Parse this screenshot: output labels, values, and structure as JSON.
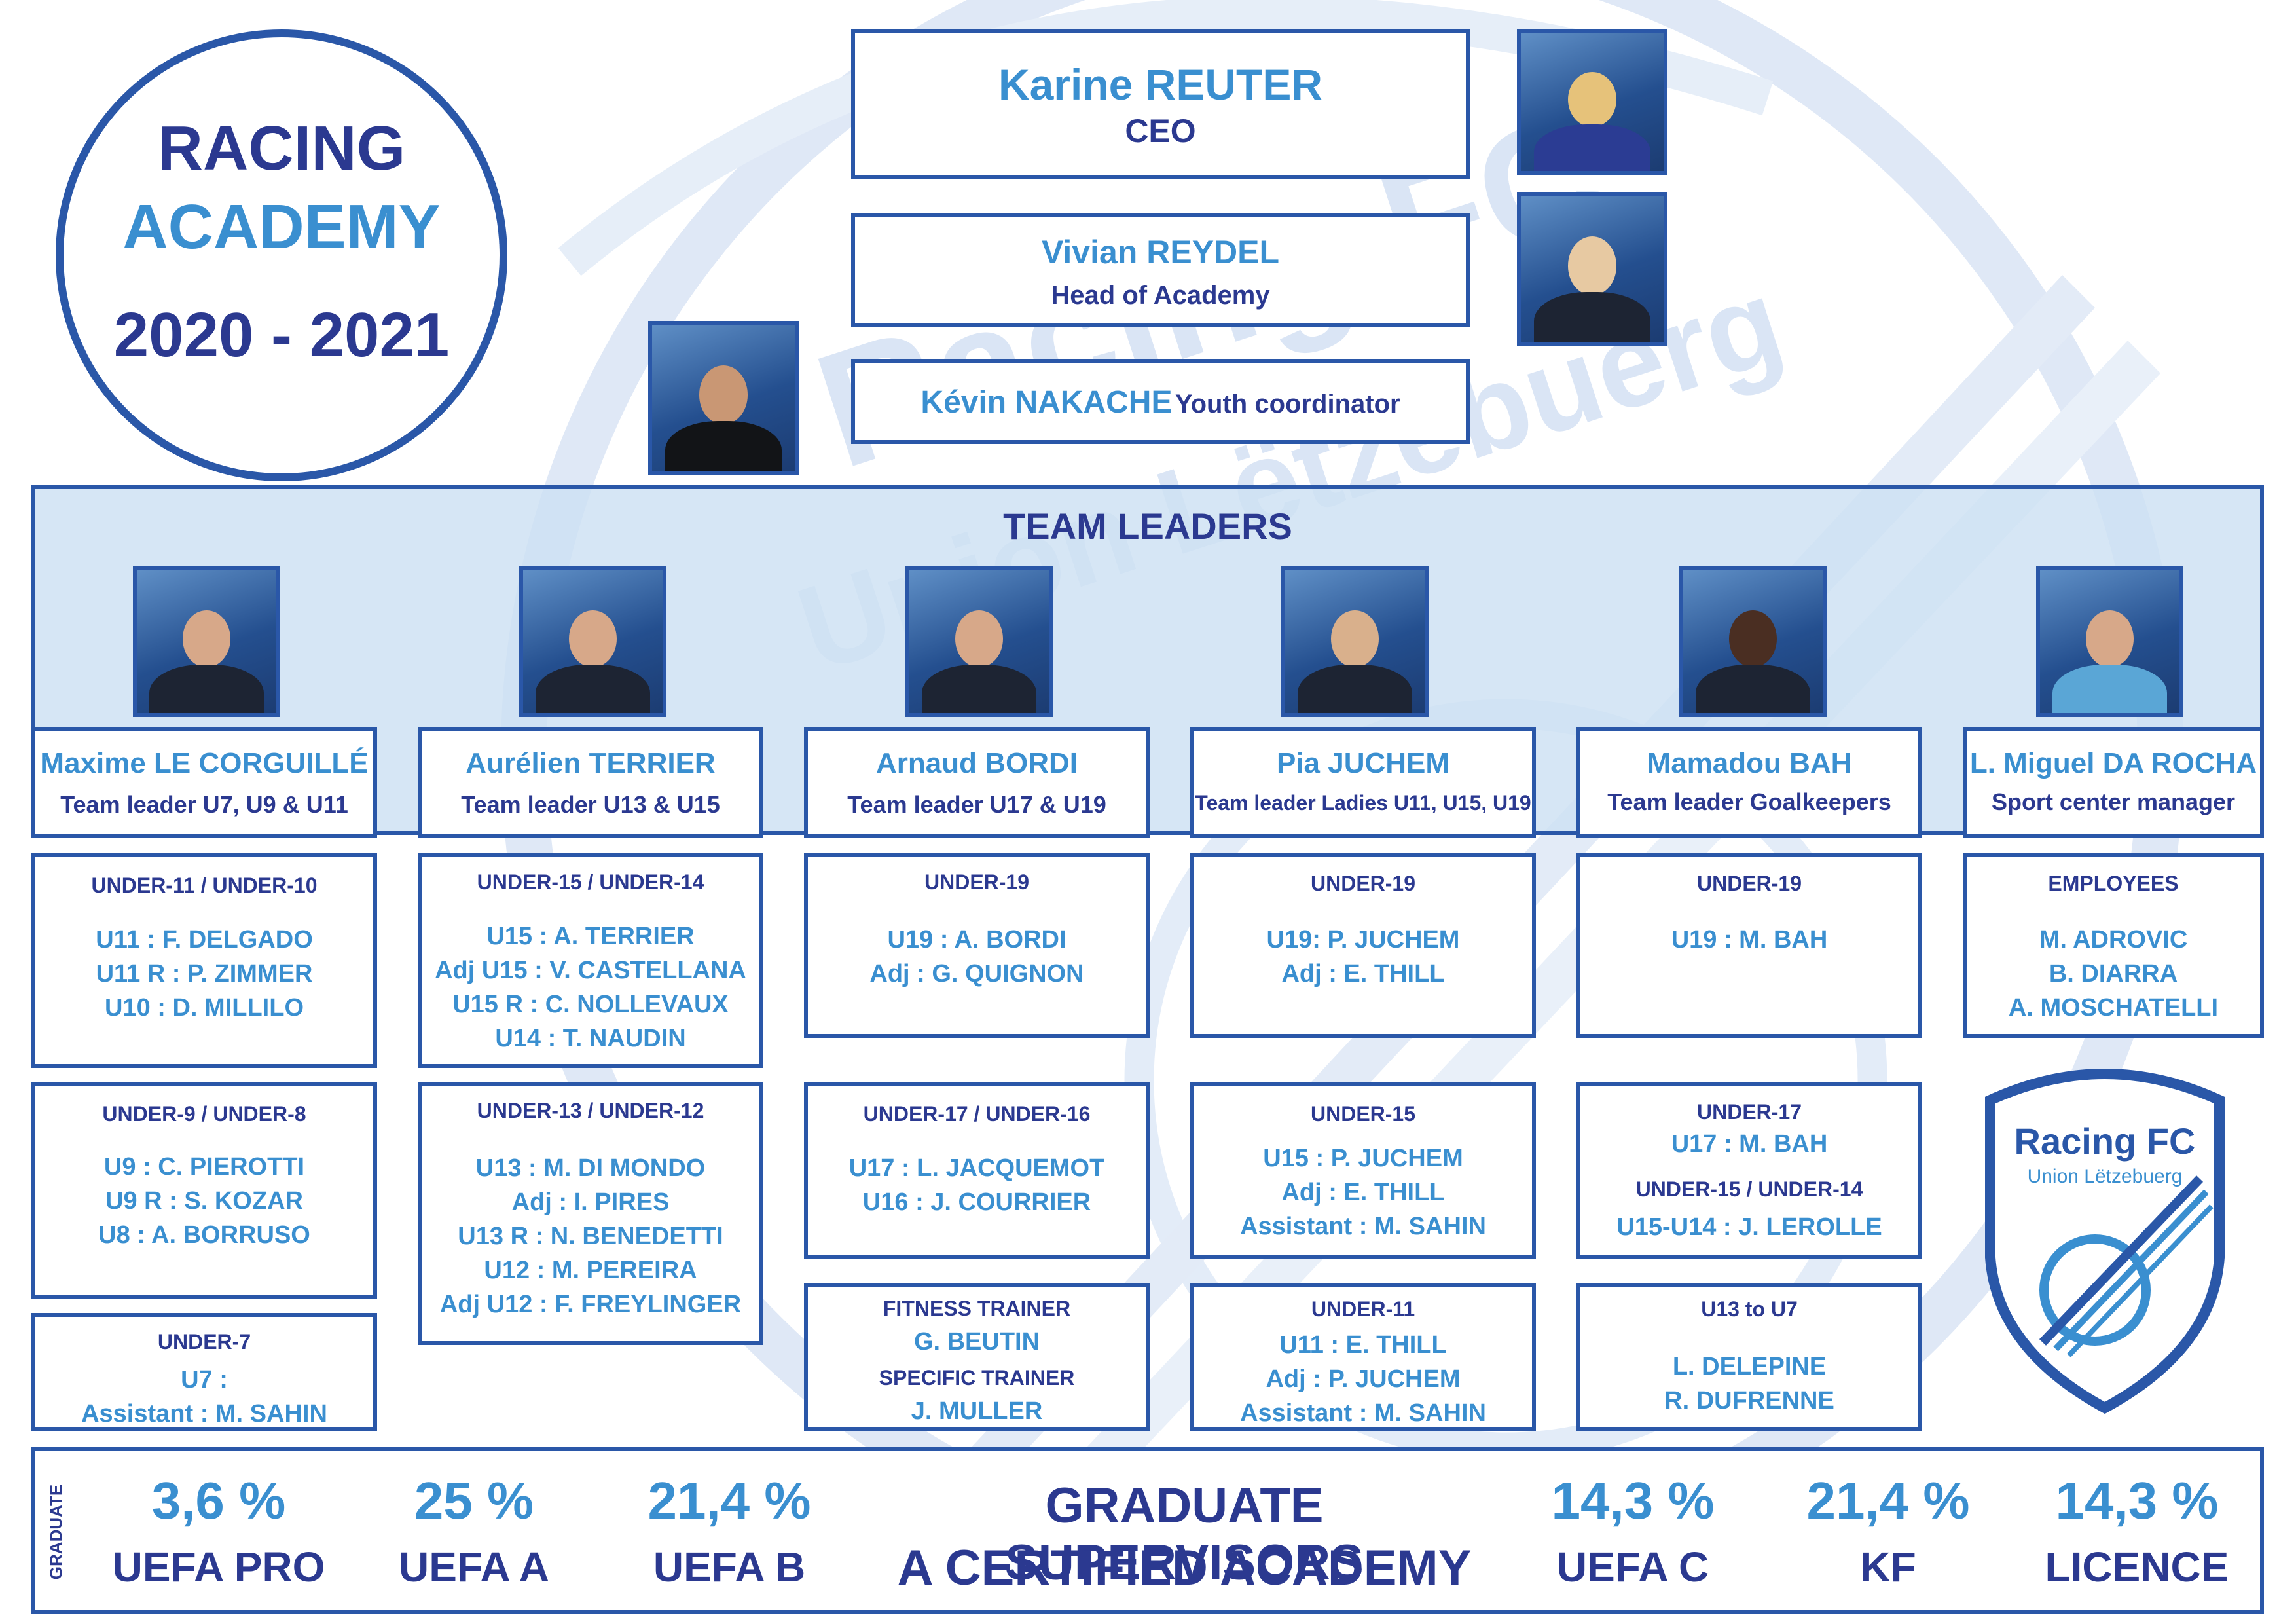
{
  "title": {
    "line1": "RACING",
    "line2": "ACADEMY",
    "season": "2020 - 2021"
  },
  "watermark": {
    "line1": "Racing FC",
    "line2": "Union Lëtzebuerg"
  },
  "management": {
    "ceo": {
      "name": "Karine REUTER",
      "role": "CEO"
    },
    "head": {
      "name": "Vivian REYDEL",
      "role": "Head of Academy"
    },
    "coordinator": {
      "name": "Kévin NAKACHE",
      "role": "Youth coordinator"
    }
  },
  "team_leaders_title": "TEAM LEADERS",
  "leaders": [
    {
      "name": "Maxime LE CORGUILLÉ",
      "role": "Team leader U7, U9 & U11"
    },
    {
      "name": "Aurélien TERRIER",
      "role": "Team leader U13 & U15"
    },
    {
      "name": "Arnaud BORDI",
      "role": "Team leader U17 & U19"
    },
    {
      "name": "Pia JUCHEM",
      "role": "Team leader Ladies U11, U15, U19"
    },
    {
      "name": "Mamadou BAH",
      "role": "Team leader Goalkeepers"
    },
    {
      "name": "L. Miguel DA ROCHA",
      "role": "Sport center manager"
    }
  ],
  "teams": {
    "c1a": {
      "title": "UNDER-11 / UNDER-10",
      "lines": [
        "U11 : F. DELGADO",
        "U11 R : P. ZIMMER",
        "U10 : D. MILLILO"
      ]
    },
    "c1b": {
      "title": "UNDER-9 / UNDER-8",
      "lines": [
        "U9 : C. PIEROTTI",
        "U9 R : S. KOZAR",
        "U8 : A. BORRUSO"
      ]
    },
    "c1c": {
      "title": "UNDER-7",
      "lines": [
        "U7 :",
        "Assistant : M. SAHIN"
      ]
    },
    "c2a": {
      "title": "UNDER-15 / UNDER-14",
      "lines": [
        "U15 : A. TERRIER",
        "Adj U15 : V. CASTELLANA",
        "U15 R : C. NOLLEVAUX",
        "U14 : T. NAUDIN"
      ]
    },
    "c2b": {
      "title": "UNDER-13 / UNDER-12",
      "lines": [
        "U13 : M. DI MONDO",
        "Adj : I. PIRES",
        "U13 R : N. BENEDETTI",
        "U12 : M. PEREIRA",
        "Adj U12 : F. FREYLINGER"
      ]
    },
    "c3a": {
      "title": "UNDER-19",
      "lines": [
        "U19 : A. BORDI",
        "Adj : G. QUIGNON"
      ]
    },
    "c3b": {
      "title": "UNDER-17 / UNDER-16",
      "lines": [
        "U17 : L. JACQUEMOT",
        "U16 : J. COURRIER"
      ]
    },
    "c3c": {
      "title1": "FITNESS TRAINER",
      "line1": "G. BEUTIN",
      "title2": "SPECIFIC TRAINER",
      "line2": "J. MULLER"
    },
    "c4a": {
      "title": "UNDER-19",
      "lines": [
        "U19: P. JUCHEM",
        "Adj : E. THILL"
      ]
    },
    "c4b": {
      "title": "UNDER-15",
      "lines": [
        "U15 : P. JUCHEM",
        "Adj : E. THILL",
        "Assistant : M. SAHIN"
      ]
    },
    "c4c": {
      "title": "UNDER-11",
      "lines": [
        "U11 : E. THILL",
        "Adj : P. JUCHEM",
        "Assistant : M. SAHIN"
      ]
    },
    "c5a": {
      "title": "UNDER-19",
      "lines": [
        "U19 : M. BAH"
      ]
    },
    "c5b": {
      "title1": "UNDER-17",
      "line1": "U17 : M. BAH",
      "title2": "UNDER-15 / UNDER-14",
      "line2": "U15-U14 : J. LEROLLE"
    },
    "c5c": {
      "title": "U13 to U7",
      "lines": [
        "L. DELEPINE",
        "R. DUFRENNE"
      ]
    },
    "c6a": {
      "title": "EMPLOYEES",
      "lines": [
        "M. ADROVIC",
        "B. DIARRA",
        "A. MOSCHATELLI"
      ]
    }
  },
  "logo": {
    "line1": "Racing FC",
    "line2": "Union Lëtzebuerg"
  },
  "graduate": {
    "label": "GRADUATE",
    "center1": "GRADUATE SUPERVISORS",
    "center2": "A CERTIFIED ACADEMY",
    "stats": [
      {
        "pct": "3,6 %",
        "label": "UEFA PRO"
      },
      {
        "pct": "25 %",
        "label": "UEFA A"
      },
      {
        "pct": "21,4 %",
        "label": "UEFA B"
      },
      {
        "pct": "14,3 %",
        "label": "UEFA C"
      },
      {
        "pct": "21,4 %",
        "label": "KF"
      },
      {
        "pct": "14,3 %",
        "label": "LICENCE"
      }
    ]
  },
  "colors": {
    "navy": "#2b3990",
    "accent": "#3a8fd0",
    "border": "#2a57a8",
    "panel": "#d7e6f5"
  }
}
